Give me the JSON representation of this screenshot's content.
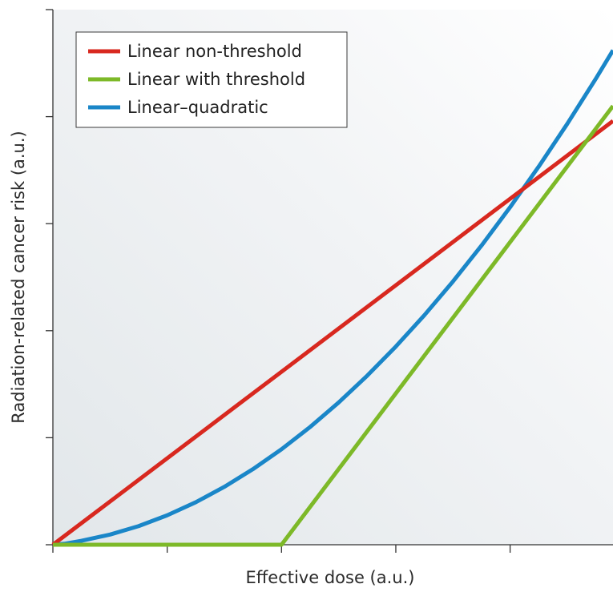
{
  "chart_data": {
    "type": "line",
    "xlabel": "Effective dose (a.u.)",
    "ylabel": "Radiation-related cancer risk (a.u.)",
    "xlim": [
      0,
      4.9
    ],
    "ylim": [
      0,
      5
    ],
    "x_ticks": [
      0,
      1,
      2,
      3,
      4
    ],
    "y_ticks": [
      0,
      1,
      2,
      3,
      4
    ],
    "legend_position": "top-left",
    "grid": false,
    "series": [
      {
        "name": "Linear non-threshold",
        "color": "#d8281f",
        "x": [
          0,
          4.9
        ],
        "y": [
          0,
          3.96
        ]
      },
      {
        "name": "Linear with threshold",
        "color": "#7db928",
        "x": [
          0,
          2,
          4.9
        ],
        "y": [
          0,
          0,
          4.1
        ]
      },
      {
        "name": "Linear–quadratic",
        "color": "#1a86c8",
        "x": [
          0,
          0.1,
          0.25,
          0.5,
          0.75,
          1.0,
          1.25,
          1.5,
          1.75,
          2.0,
          2.25,
          2.5,
          2.75,
          3.0,
          3.25,
          3.5,
          3.75,
          4.0,
          4.25,
          4.5,
          4.75,
          4.9
        ],
        "y": [
          0,
          0.009,
          0.037,
          0.095,
          0.174,
          0.275,
          0.397,
          0.541,
          0.706,
          0.892,
          1.1,
          1.329,
          1.58,
          1.852,
          2.145,
          2.46,
          2.796,
          3.154,
          3.533,
          3.933,
          4.355,
          4.62
        ]
      }
    ]
  }
}
